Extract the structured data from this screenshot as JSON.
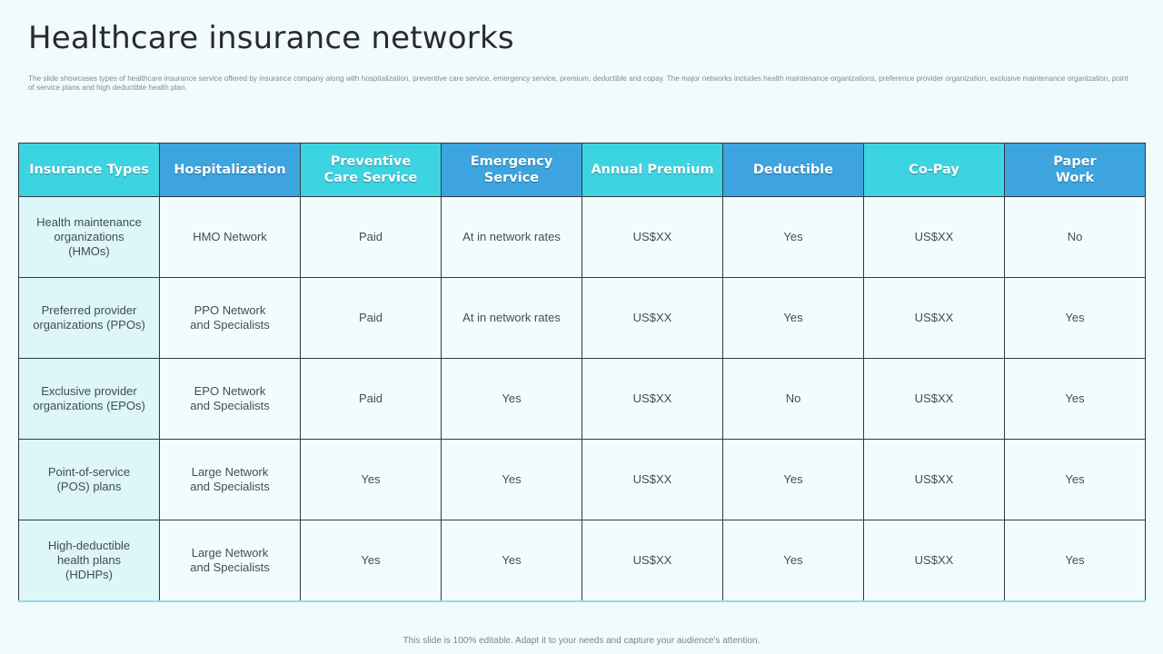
{
  "title": "Healthcare insurance networks",
  "subtitle": "The slide showcases types of healthcare insurance service offered by insurance company along with hospitalization, preventive care service, emergency service, premium, deductible and copay. The major networks includes health maintenance organizations, preference provider organization, exclusive maintenance organization, point of service plans and high deductible health plan.",
  "table": {
    "headers": [
      "Insurance Types",
      "Hospitalization",
      "Preventive\nCare Service",
      "Emergency\nService",
      "Annual Premium",
      "Deductible",
      "Co-Pay",
      "Paper\nWork"
    ],
    "header_colors": [
      "#3dd4e2",
      "#3da4e0",
      "#3dd4e2",
      "#3da4e0",
      "#3dd4e2",
      "#3da4e0",
      "#3dd4e2",
      "#3da4e0"
    ],
    "rows": [
      [
        "Health maintenance\norganizations\n(HMOs)",
        "HMO Network",
        "Paid",
        "At in network rates",
        "US$XX",
        "Yes",
        "US$XX",
        "No"
      ],
      [
        "Preferred  provider\norganizations (PPOs)",
        "PPO Network\nand Specialists",
        "Paid",
        "At in network rates",
        "US$XX",
        "Yes",
        "US$XX",
        "Yes"
      ],
      [
        "Exclusive provider\norganizations (EPOs)",
        "EPO Network\nand Specialists",
        "Paid",
        "Yes",
        "US$XX",
        "No",
        "US$XX",
        "Yes"
      ],
      [
        "Point-of-service\n(POS) plans",
        "Large Network\nand Specialists",
        "Yes",
        "Yes",
        "US$XX",
        "Yes",
        "US$XX",
        "Yes"
      ],
      [
        "High-deductible\nhealth plans\n(HDHPs)",
        "Large Network\nand Specialists",
        "Yes",
        "Yes",
        "US$XX",
        "Yes",
        "US$XX",
        "Yes"
      ]
    ]
  },
  "footer": "This slide is 100% editable.  Adapt it to your needs and capture your audience's attention."
}
